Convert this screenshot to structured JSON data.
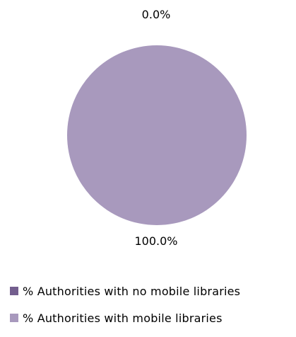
{
  "chart_data": {
    "type": "pie",
    "title": "",
    "slices": [
      {
        "label": "% Authorities with no mobile libraries",
        "value": 0.0,
        "display": "0.0%",
        "color": "#735e8e"
      },
      {
        "label": "% Authorities with mobile libraries",
        "value": 100.0,
        "display": "100.0%",
        "color": "#a899bd"
      }
    ],
    "legend_position": "bottom"
  }
}
